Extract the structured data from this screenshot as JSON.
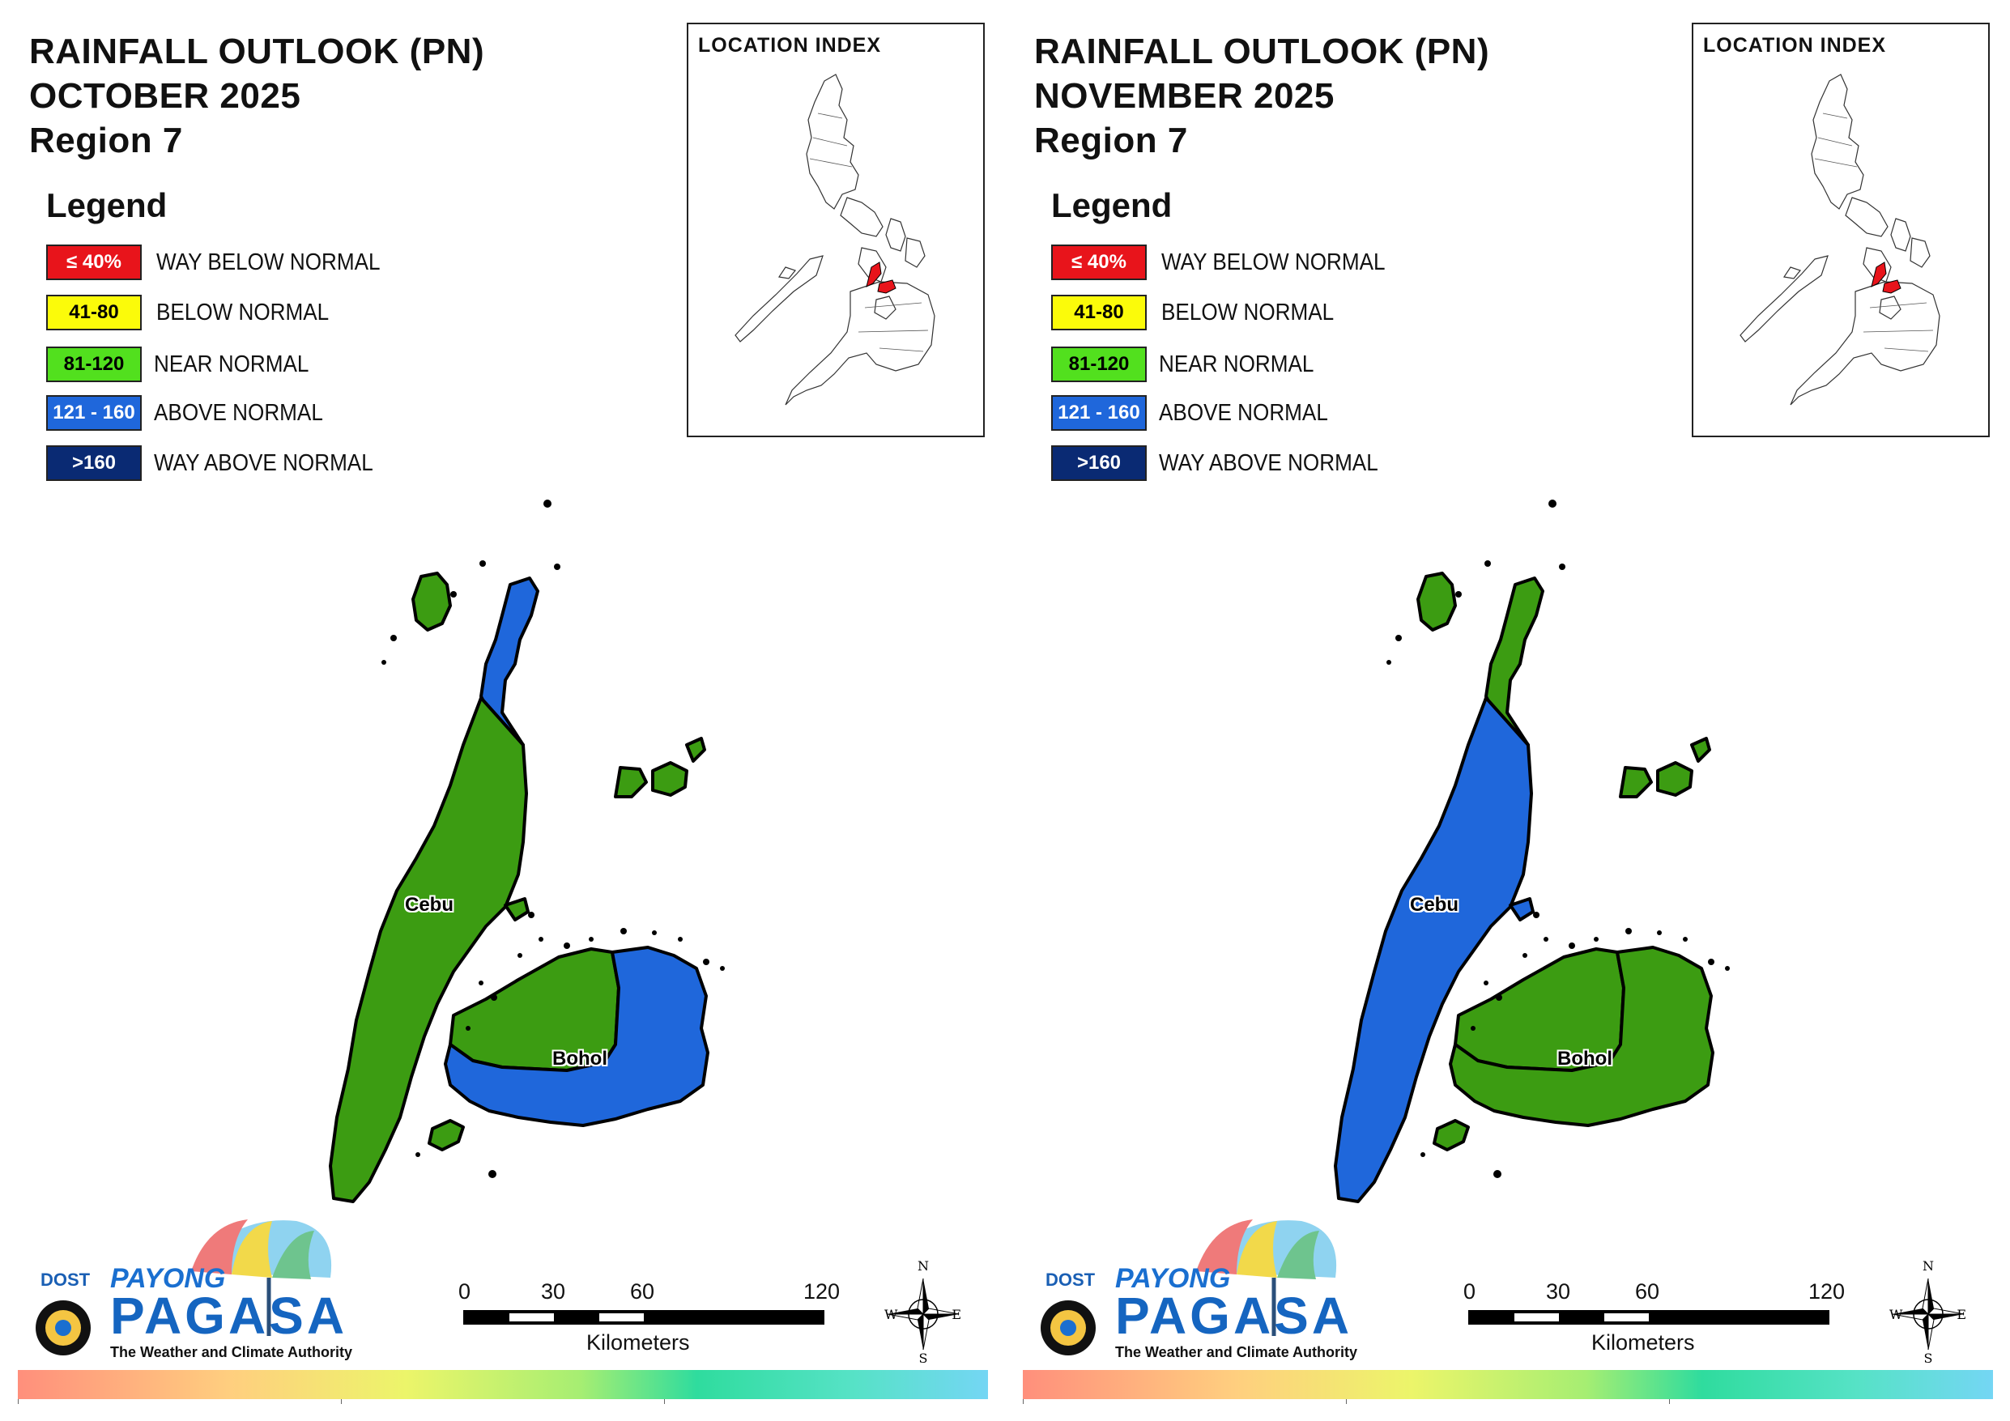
{
  "panels": [
    {
      "id": "oct",
      "title_line1": "RAINFALL OUTLOOK (PN)",
      "title_line2": "OCTOBER 2025",
      "title_line3": "Region 7",
      "region_colors": {
        "cebu_north_tip": "#1f67db",
        "cebu_main": "#3c9c12",
        "bohol_west": "#3c9c12",
        "bohol_east": "#1f67db"
      }
    },
    {
      "id": "nov",
      "title_line1": "RAINFALL OUTLOOK (PN)",
      "title_line2": "NOVEMBER 2025",
      "title_line3": "Region 7",
      "region_colors": {
        "cebu_north_tip": "#3c9c12",
        "cebu_main": "#1f67db",
        "bohol_west": "#3c9c12",
        "bohol_east": "#3c9c12"
      }
    }
  ],
  "legend": {
    "title": "Legend",
    "items": [
      {
        "range": "≤ 40%",
        "label": "WAY BELOW NORMAL",
        "color": "#e8141b",
        "text_color": "#ffffff"
      },
      {
        "range": "41-80",
        "label": "BELOW NORMAL",
        "color": "#fbfb0a",
        "text_color": "#000000"
      },
      {
        "range": "81-120",
        "label": "NEAR NORMAL",
        "color": "#52e01e",
        "text_color": "#000000"
      },
      {
        "range": "121 - 160",
        "label": "ABOVE NORMAL",
        "color": "#1f67db",
        "text_color": "#ffffff"
      },
      {
        "range": ">160",
        "label": "WAY ABOVE NORMAL",
        "color": "#0a2a73",
        "text_color": "#ffffff"
      }
    ]
  },
  "inset": {
    "title": "LOCATION INDEX",
    "highlight_color": "#e8141b"
  },
  "labels": {
    "cebu": "Cebu",
    "bohol": "Bohol"
  },
  "scale": {
    "ticks": [
      "0",
      "30",
      "60",
      "120"
    ],
    "unit": "Kilometers"
  },
  "compass": {
    "n": "N",
    "s": "S",
    "e": "E",
    "w": "W"
  },
  "logo": {
    "dost": "DOST",
    "payong": "PAYONG",
    "pagasa": "PAGASA",
    "tagline": "The Weather and Climate Authority"
  },
  "colors": {
    "green": "#3c9c12",
    "blue": "#1f67db",
    "outline": "#000000"
  }
}
